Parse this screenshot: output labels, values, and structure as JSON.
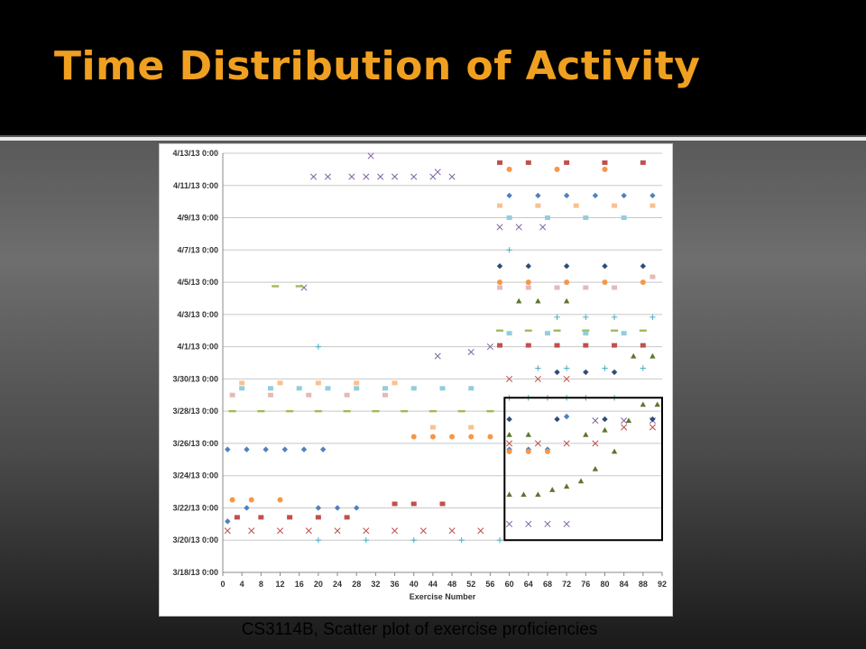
{
  "slide": {
    "title": "Time Distribution of Activity",
    "caption": "CS3114B, Scatter plot of exercise proficiencies"
  },
  "colors": {
    "title": "#f0a020",
    "highlight_box": "#000000",
    "series_palette": [
      "#4f81bd",
      "#c0504d",
      "#9bbb59",
      "#8064a2",
      "#4bacc6",
      "#f79646",
      "#2c4d75",
      "#772c2a",
      "#5f7530",
      "#e6b9b8",
      "#93cddd",
      "#fac090"
    ]
  },
  "chart_data": {
    "type": "scatter",
    "title": "",
    "xlabel": "Exercise Number",
    "ylabel": "",
    "xlim": [
      0,
      92
    ],
    "ylim": [
      "3/18/13 0:00",
      "4/13/13 0:00"
    ],
    "x_ticks": [
      "0",
      "4",
      "8",
      "12",
      "16",
      "20",
      "24",
      "28",
      "32",
      "36",
      "40",
      "44",
      "48",
      "52",
      "56",
      "60",
      "64",
      "68",
      "72",
      "76",
      "80",
      "84",
      "88",
      "92"
    ],
    "y_ticks": [
      "4/13/13 0:00",
      "4/11/13 0:00",
      "4/9/13 0:00",
      "4/7/13 0:00",
      "4/5/13 0:00",
      "4/3/13 0:00",
      "4/1/13 0:00",
      "3/30/13 0:00",
      "3/28/13 0:00",
      "3/26/13 0:00",
      "3/24/13 0:00",
      "3/22/13 0:00",
      "3/20/13 0:00",
      "3/18/13 0:00"
    ],
    "grid": true,
    "legend": "none",
    "highlight_region": {
      "x": [
        59,
        92
      ],
      "y": [
        "3/20/13 0:00",
        "3/28/13 20:00"
      ]
    },
    "series": [
      {
        "marker": "diamond",
        "color": "#4f81bd",
        "points": [
          [
            1,
            "3/25/13 15:00"
          ],
          [
            5,
            "3/25/13 15:00"
          ],
          [
            9,
            "3/25/13 15:00"
          ],
          [
            13,
            "3/25/13 15:00"
          ],
          [
            17,
            "3/25/13 15:00"
          ],
          [
            21,
            "3/25/13 15:00"
          ],
          [
            60,
            "3/25/13 15:00"
          ],
          [
            64,
            "3/25/13 15:00"
          ],
          [
            68,
            "3/25/13 15:00"
          ],
          [
            72,
            "3/27/13 16:00"
          ],
          [
            1,
            "3/21/13 4:00"
          ],
          [
            5,
            "3/22/13 0:00"
          ],
          [
            20,
            "3/22/13 0:00"
          ],
          [
            24,
            "3/22/13 0:00"
          ],
          [
            28,
            "3/22/13 0:00"
          ],
          [
            60,
            "4/10/13 9:00"
          ],
          [
            66,
            "4/10/13 9:00"
          ],
          [
            72,
            "4/10/13 9:00"
          ],
          [
            78,
            "4/10/13 9:00"
          ],
          [
            84,
            "4/10/13 9:00"
          ],
          [
            90,
            "4/10/13 9:00"
          ]
        ]
      },
      {
        "marker": "square",
        "color": "#c0504d",
        "points": [
          [
            3,
            "3/21/13 10:00"
          ],
          [
            8,
            "3/21/13 10:00"
          ],
          [
            14,
            "3/21/13 10:00"
          ],
          [
            20,
            "3/21/13 10:00"
          ],
          [
            26,
            "3/21/13 10:00"
          ],
          [
            36,
            "3/22/13 6:00"
          ],
          [
            40,
            "3/22/13 6:00"
          ],
          [
            46,
            "3/22/13 6:00"
          ],
          [
            58,
            "4/1/13 2:00"
          ],
          [
            64,
            "4/1/13 2:00"
          ],
          [
            70,
            "4/1/13 2:00"
          ],
          [
            76,
            "4/1/13 2:00"
          ],
          [
            82,
            "4/1/13 2:00"
          ],
          [
            88,
            "4/1/13 2:00"
          ],
          [
            58,
            "4/12/13 10:00"
          ],
          [
            64,
            "4/12/13 10:00"
          ],
          [
            72,
            "4/12/13 10:00"
          ],
          [
            80,
            "4/12/13 10:00"
          ],
          [
            88,
            "4/12/13 10:00"
          ]
        ]
      },
      {
        "marker": "triangle",
        "color": "#5f7530",
        "points": [
          [
            60,
            "3/22/13 20:00"
          ],
          [
            63,
            "3/22/13 20:00"
          ],
          [
            66,
            "3/22/13 20:00"
          ],
          [
            69,
            "3/23/13 3:00"
          ],
          [
            72,
            "3/23/13 8:00"
          ],
          [
            75,
            "3/23/13 16:00"
          ],
          [
            78,
            "3/24/13 10:00"
          ],
          [
            82,
            "3/25/13 12:00"
          ],
          [
            85,
            "3/27/13 10:00"
          ],
          [
            88,
            "3/28/13 10:00"
          ],
          [
            91,
            "3/28/13 10:00"
          ],
          [
            60,
            "3/26/13 13:00"
          ],
          [
            64,
            "3/26/13 13:00"
          ],
          [
            76,
            "3/26/13 13:00"
          ],
          [
            80,
            "3/26/13 20:00"
          ],
          [
            86,
            "3/31/13 10:00"
          ],
          [
            90,
            "3/31/13 10:00"
          ],
          [
            62,
            "4/3/13 20:00"
          ],
          [
            66,
            "4/3/13 20:00"
          ],
          [
            72,
            "4/3/13 20:00"
          ]
        ]
      },
      {
        "marker": "x",
        "color": "#8064a2",
        "points": [
          [
            19,
            "4/11/13 13:00"
          ],
          [
            22,
            "4/11/13 13:00"
          ],
          [
            27,
            "4/11/13 13:00"
          ],
          [
            30,
            "4/11/13 13:00"
          ],
          [
            33,
            "4/11/13 13:00"
          ],
          [
            36,
            "4/11/13 13:00"
          ],
          [
            40,
            "4/11/13 13:00"
          ],
          [
            44,
            "4/11/13 13:00"
          ],
          [
            48,
            "4/11/13 13:00"
          ],
          [
            31,
            "4/12/13 20:00"
          ],
          [
            45,
            "4/11/13 20:00"
          ],
          [
            17,
            "4/4/13 16:00"
          ],
          [
            60,
            "3/21/13 0:00"
          ],
          [
            64,
            "3/21/13 0:00"
          ],
          [
            68,
            "3/21/13 0:00"
          ],
          [
            72,
            "3/21/13 0:00"
          ],
          [
            78,
            "3/27/13 10:00"
          ],
          [
            84,
            "3/27/13 10:00"
          ],
          [
            90,
            "3/27/13 10:00"
          ],
          [
            45,
            "3/31/13 10:00"
          ],
          [
            52,
            "3/31/13 16:00"
          ],
          [
            56,
            "4/1/13 0:00"
          ],
          [
            58,
            "4/8/13 10:00"
          ],
          [
            62,
            "4/8/13 10:00"
          ],
          [
            67,
            "4/8/13 10:00"
          ]
        ]
      },
      {
        "marker": "plus",
        "color": "#4bacc6",
        "points": [
          [
            60,
            "3/28/13 20:00"
          ],
          [
            64,
            "3/28/13 20:00"
          ],
          [
            68,
            "3/28/13 20:00"
          ],
          [
            72,
            "3/28/13 20:00"
          ],
          [
            76,
            "3/28/13 20:00"
          ],
          [
            82,
            "3/28/13 20:00"
          ],
          [
            66,
            "3/30/13 16:00"
          ],
          [
            72,
            "3/30/13 16:00"
          ],
          [
            80,
            "3/30/13 16:00"
          ],
          [
            88,
            "3/30/13 16:00"
          ],
          [
            70,
            "4/2/13 20:00"
          ],
          [
            76,
            "4/2/13 20:00"
          ],
          [
            82,
            "4/2/13 20:00"
          ],
          [
            90,
            "4/2/13 20:00"
          ],
          [
            20,
            "3/20/13 0:00"
          ],
          [
            30,
            "3/20/13 0:00"
          ],
          [
            40,
            "3/20/13 0:00"
          ],
          [
            50,
            "3/20/13 0:00"
          ],
          [
            58,
            "3/20/13 0:00"
          ],
          [
            20,
            "4/1/13 0:00"
          ],
          [
            60,
            "4/7/13 0:00"
          ]
        ]
      },
      {
        "marker": "circle",
        "color": "#f79646",
        "points": [
          [
            40,
            "3/26/13 10:00"
          ],
          [
            44,
            "3/26/13 10:00"
          ],
          [
            48,
            "3/26/13 10:00"
          ],
          [
            52,
            "3/26/13 10:00"
          ],
          [
            56,
            "3/26/13 10:00"
          ],
          [
            60,
            "3/25/13 12:00"
          ],
          [
            64,
            "3/25/13 12:00"
          ],
          [
            68,
            "3/25/13 12:00"
          ],
          [
            2,
            "3/22/13 12:00"
          ],
          [
            6,
            "3/22/13 12:00"
          ],
          [
            12,
            "3/22/13 12:00"
          ],
          [
            58,
            "4/5/13 0:00"
          ],
          [
            64,
            "4/5/13 0:00"
          ],
          [
            72,
            "4/5/13 0:00"
          ],
          [
            80,
            "4/5/13 0:00"
          ],
          [
            88,
            "4/5/13 0:00"
          ],
          [
            60,
            "4/12/13 0:00"
          ],
          [
            70,
            "4/12/13 0:00"
          ],
          [
            80,
            "4/12/13 0:00"
          ]
        ]
      },
      {
        "marker": "dash",
        "color": "#9bbb59",
        "points": [
          [
            2,
            "3/28/13 0:00"
          ],
          [
            8,
            "3/28/13 0:00"
          ],
          [
            14,
            "3/28/13 0:00"
          ],
          [
            20,
            "3/28/13 0:00"
          ],
          [
            26,
            "3/28/13 0:00"
          ],
          [
            32,
            "3/28/13 0:00"
          ],
          [
            38,
            "3/28/13 0:00"
          ],
          [
            44,
            "3/28/13 0:00"
          ],
          [
            50,
            "3/28/13 0:00"
          ],
          [
            56,
            "3/28/13 0:00"
          ],
          [
            11,
            "4/4/13 18:00"
          ],
          [
            16,
            "4/4/13 18:00"
          ],
          [
            58,
            "4/2/13 0:00"
          ],
          [
            64,
            "4/2/13 0:00"
          ],
          [
            70,
            "4/2/13 0:00"
          ],
          [
            76,
            "4/2/13 0:00"
          ],
          [
            82,
            "4/2/13 0:00"
          ],
          [
            88,
            "4/2/13 0:00"
          ]
        ]
      },
      {
        "marker": "square",
        "color": "#93cddd",
        "points": [
          [
            4,
            "3/29/13 10:00"
          ],
          [
            10,
            "3/29/13 10:00"
          ],
          [
            16,
            "3/29/13 10:00"
          ],
          [
            22,
            "3/29/13 10:00"
          ],
          [
            28,
            "3/29/13 10:00"
          ],
          [
            34,
            "3/29/13 10:00"
          ],
          [
            40,
            "3/29/13 10:00"
          ],
          [
            46,
            "3/29/13 10:00"
          ],
          [
            52,
            "3/29/13 10:00"
          ],
          [
            60,
            "4/9/13 0:00"
          ],
          [
            68,
            "4/9/13 0:00"
          ],
          [
            76,
            "4/9/13 0:00"
          ],
          [
            84,
            "4/9/13 0:00"
          ],
          [
            60,
            "4/1/13 20:00"
          ],
          [
            68,
            "4/1/13 20:00"
          ],
          [
            76,
            "4/1/13 20:00"
          ],
          [
            84,
            "4/1/13 20:00"
          ]
        ]
      },
      {
        "marker": "square",
        "color": "#fac090",
        "points": [
          [
            4,
            "3/29/13 18:00"
          ],
          [
            12,
            "3/29/13 18:00"
          ],
          [
            20,
            "3/29/13 18:00"
          ],
          [
            28,
            "3/29/13 18:00"
          ],
          [
            36,
            "3/29/13 18:00"
          ],
          [
            44,
            "3/27/13 0:00"
          ],
          [
            52,
            "3/27/13 0:00"
          ],
          [
            58,
            "4/9/13 18:00"
          ],
          [
            66,
            "4/9/13 18:00"
          ],
          [
            74,
            "4/9/13 18:00"
          ],
          [
            82,
            "4/9/13 18:00"
          ],
          [
            90,
            "4/9/13 18:00"
          ]
        ]
      },
      {
        "marker": "diamond",
        "color": "#2c4d75",
        "points": [
          [
            58,
            "4/6/13 0:00"
          ],
          [
            64,
            "4/6/13 0:00"
          ],
          [
            72,
            "4/6/13 0:00"
          ],
          [
            80,
            "4/6/13 0:00"
          ],
          [
            88,
            "4/6/13 0:00"
          ],
          [
            60,
            "3/27/13 12:00"
          ],
          [
            70,
            "3/27/13 12:00"
          ],
          [
            80,
            "3/27/13 12:00"
          ],
          [
            90,
            "3/27/13 12:00"
          ],
          [
            70,
            "3/30/13 10:00"
          ],
          [
            76,
            "3/30/13 10:00"
          ],
          [
            82,
            "3/30/13 10:00"
          ]
        ]
      },
      {
        "marker": "square",
        "color": "#e6b9b8",
        "points": [
          [
            58,
            "4/4/13 16:00"
          ],
          [
            64,
            "4/4/13 16:00"
          ],
          [
            70,
            "4/4/13 16:00"
          ],
          [
            76,
            "4/4/13 16:00"
          ],
          [
            82,
            "4/4/13 16:00"
          ],
          [
            90,
            "4/5/13 8:00"
          ],
          [
            2,
            "3/29/13 0:00"
          ],
          [
            10,
            "3/29/13 0:00"
          ],
          [
            18,
            "3/29/13 0:00"
          ],
          [
            26,
            "3/29/13 0:00"
          ],
          [
            34,
            "3/29/13 0:00"
          ]
        ]
      },
      {
        "marker": "x",
        "color": "#c0504d",
        "points": [
          [
            1,
            "3/20/13 14:00"
          ],
          [
            6,
            "3/20/13 14:00"
          ],
          [
            12,
            "3/20/13 14:00"
          ],
          [
            18,
            "3/20/13 14:00"
          ],
          [
            24,
            "3/20/13 14:00"
          ],
          [
            30,
            "3/20/13 14:00"
          ],
          [
            36,
            "3/20/13 14:00"
          ],
          [
            42,
            "3/20/13 14:00"
          ],
          [
            48,
            "3/20/13 14:00"
          ],
          [
            54,
            "3/20/13 14:00"
          ],
          [
            60,
            "3/26/13 0:00"
          ],
          [
            66,
            "3/26/13 0:00"
          ],
          [
            72,
            "3/26/13 0:00"
          ],
          [
            78,
            "3/26/13 0:00"
          ],
          [
            84,
            "3/27/13 0:00"
          ],
          [
            90,
            "3/27/13 0:00"
          ],
          [
            60,
            "3/30/13 0:00"
          ],
          [
            66,
            "3/30/13 0:00"
          ],
          [
            72,
            "3/30/13 0:00"
          ]
        ]
      }
    ]
  }
}
